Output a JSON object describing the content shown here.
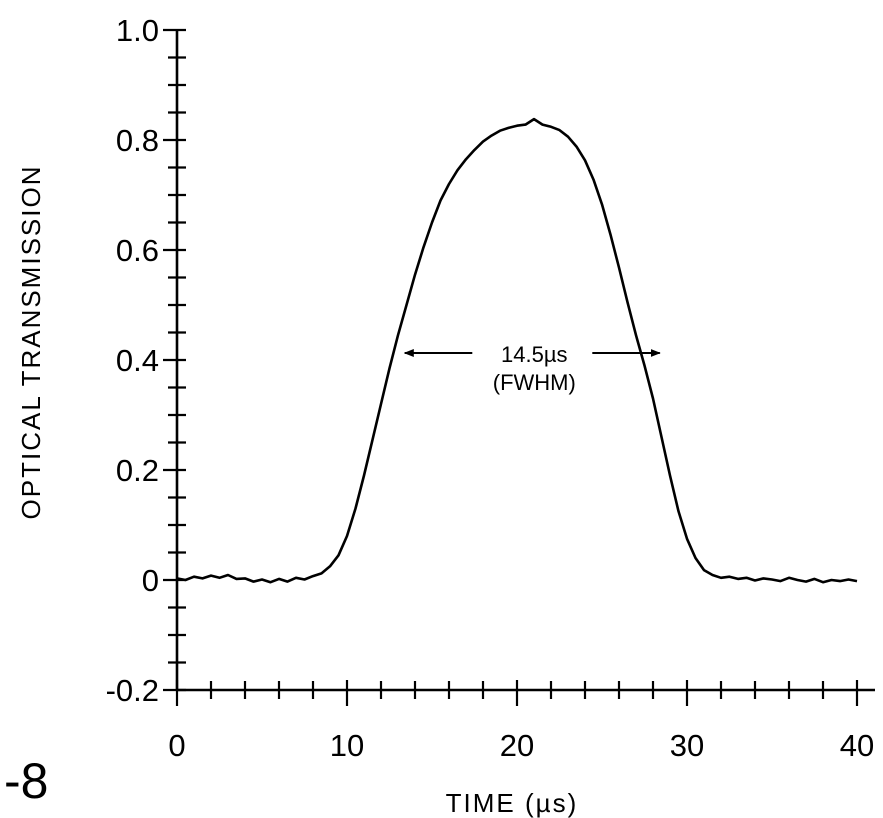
{
  "figure_label": "-8",
  "chart_data": {
    "type": "line",
    "title": "",
    "xlabel": "TIME (µs)",
    "ylabel": "OPTICAL TRANSMISSION",
    "xlim": [
      0,
      40
    ],
    "ylim": [
      -0.2,
      1.0
    ],
    "x_ticks": [
      0,
      10,
      20,
      30,
      40
    ],
    "x_tick_labels": [
      "0",
      "10",
      "20",
      "30",
      "40"
    ],
    "x_minor_step": 2,
    "y_ticks": [
      -0.2,
      0,
      0.2,
      0.4,
      0.6,
      0.8,
      1.0
    ],
    "y_tick_labels": [
      "-0.2",
      "0",
      "0.2",
      "0.4",
      "0.6",
      "0.8",
      "1.0"
    ],
    "y_minor_step": 0.05,
    "grid": false,
    "series": [
      {
        "name": "",
        "x": [
          0,
          0.5,
          1,
          1.5,
          2,
          2.5,
          3,
          3.5,
          4,
          4.5,
          5,
          5.5,
          6,
          6.5,
          7,
          7.5,
          8,
          8.5,
          9,
          9.5,
          10,
          10.5,
          11,
          11.5,
          12,
          12.5,
          13,
          13.5,
          14,
          14.5,
          15,
          15.5,
          16,
          16.5,
          17,
          17.5,
          18,
          18.5,
          19,
          19.5,
          20,
          20.5,
          21,
          21.5,
          22,
          22.5,
          23,
          23.5,
          24,
          24.5,
          25,
          25.5,
          26,
          26.5,
          27,
          27.5,
          28,
          28.5,
          29,
          29.5,
          30,
          30.5,
          31,
          31.5,
          32,
          32.5,
          33,
          33.5,
          34,
          34.5,
          35,
          35.5,
          36,
          36.5,
          37,
          37.5,
          38,
          38.5,
          39,
          39.5,
          40
        ],
        "y": [
          0.003,
          0.0,
          0.006,
          0.003,
          0.008,
          0.004,
          0.009,
          0.002,
          0.003,
          -0.003,
          0.001,
          -0.004,
          0.002,
          -0.003,
          0.004,
          0.001,
          0.007,
          0.012,
          0.025,
          0.045,
          0.08,
          0.13,
          0.19,
          0.255,
          0.32,
          0.385,
          0.445,
          0.5,
          0.555,
          0.605,
          0.65,
          0.69,
          0.72,
          0.745,
          0.765,
          0.782,
          0.797,
          0.808,
          0.817,
          0.822,
          0.826,
          0.828,
          0.838,
          0.828,
          0.824,
          0.818,
          0.806,
          0.788,
          0.763,
          0.728,
          0.683,
          0.628,
          0.568,
          0.505,
          0.445,
          0.39,
          0.33,
          0.26,
          0.19,
          0.125,
          0.075,
          0.04,
          0.018,
          0.009,
          0.004,
          0.006,
          0.002,
          0.004,
          -0.001,
          0.003,
          0.001,
          -0.002,
          0.004,
          0.0,
          -0.003,
          0.002,
          -0.004,
          0.0,
          -0.002,
          0.001,
          -0.002
        ]
      }
    ],
    "annotations": [
      {
        "text": "14.5µs",
        "subtext": "(FWHM)",
        "type": "double-arrow",
        "x_start": 13.4,
        "x_end": 28.4,
        "y": 0.4
      }
    ]
  }
}
